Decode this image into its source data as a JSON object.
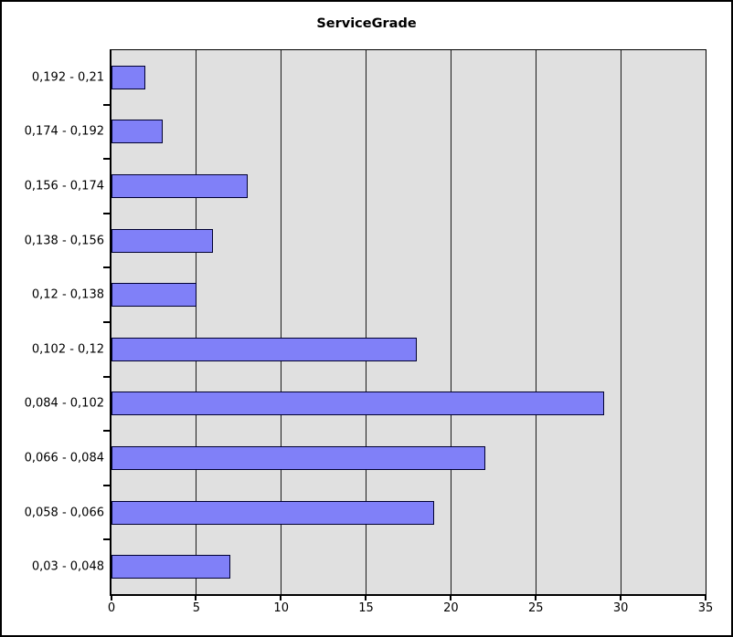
{
  "window": {
    "background": "#ffffff",
    "frame_border_color": "#000000"
  },
  "chart_data": {
    "type": "bar",
    "orientation": "horizontal",
    "title": "ServiceGrade",
    "categories": [
      "0,192 - 0,21",
      "0,174 - 0,192",
      "0,156 - 0,174",
      "0,138 - 0,156",
      "0,12 - 0,138",
      "0,102 - 0,12",
      "0,084 - 0,102",
      "0,066 - 0,084",
      "0,058 - 0,066",
      "0,03 - 0,048"
    ],
    "values": [
      2,
      3,
      8,
      6,
      5,
      18,
      29,
      22,
      19,
      7
    ],
    "xlim": [
      0,
      35
    ],
    "x_ticks": [
      0,
      5,
      10,
      15,
      20,
      25,
      30,
      35
    ],
    "x_tick_labels": [
      "0",
      "5",
      "10",
      "15",
      "20",
      "25",
      "30",
      "35"
    ],
    "grid": true,
    "legend": "none",
    "xlabel": "",
    "ylabel": "",
    "colors": {
      "bar_fill": "#8080f8",
      "bar_border": "#000030",
      "plot_background": "#e0e0e0",
      "gridline": "#1a1a1a",
      "axis": "#000000",
      "text": "#000000"
    }
  }
}
